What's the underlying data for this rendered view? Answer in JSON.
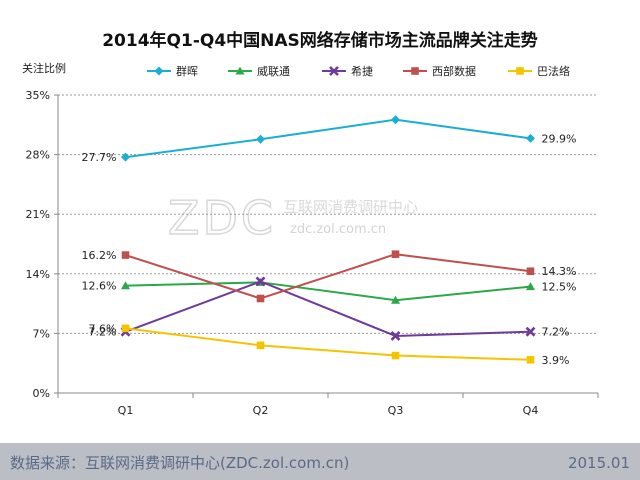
{
  "chart_data": {
    "type": "line",
    "title": "2014年Q1-Q4中国NAS网络存储市场主流品牌关注走势",
    "ylabel": "关注比例",
    "xlabel": "",
    "categories": [
      "Q1",
      "Q2",
      "Q3",
      "Q4"
    ],
    "ylim": [
      0,
      35
    ],
    "yticks": [
      0,
      7,
      14,
      21,
      28,
      35
    ],
    "ytick_labels": [
      "0%",
      "7%",
      "14%",
      "21%",
      "28%",
      "35%"
    ],
    "grid": "horizontal dashed",
    "legend_position": "top",
    "series": [
      {
        "name": "群晖",
        "color": "#1aaed0",
        "marker": "diamond",
        "values": [
          27.7,
          29.8,
          32.1,
          29.9
        ],
        "labels": {
          "0": "27.7%",
          "3": "29.9%"
        }
      },
      {
        "name": "威联通",
        "color": "#2aa84a",
        "marker": "triangle",
        "values": [
          12.6,
          13.0,
          10.9,
          12.5
        ],
        "labels": {
          "0": "12.6%",
          "3": "12.5%"
        }
      },
      {
        "name": "希捷",
        "color": "#6e3b9a",
        "marker": "cross",
        "values": [
          7.2,
          13.1,
          6.7,
          7.2
        ],
        "labels": {
          "0": "7.2%",
          "3": "7.2%"
        }
      },
      {
        "name": "西部数据",
        "color": "#c0504d",
        "marker": "square",
        "values": [
          16.2,
          11.1,
          16.3,
          14.3
        ],
        "labels": {
          "0": "16.2%",
          "3": "14.3%"
        }
      },
      {
        "name": "巴法络",
        "color": "#f5c400",
        "marker": "square",
        "values": [
          7.6,
          5.6,
          4.4,
          3.9
        ],
        "labels": {
          "0": "7.6%",
          "3": "3.9%"
        }
      }
    ]
  },
  "watermark": {
    "logo": "ZDC",
    "name": "互联网消费调研中心",
    "url": "zdc.zol.com.cn"
  },
  "footer": {
    "source": "数据来源：互联网消费调研中心(ZDC.zol.com.cn)",
    "date": "2015.01"
  },
  "colors": {
    "footer_bg": "#bcbec5",
    "grid": "#9a9a9a",
    "axis": "#888888"
  }
}
